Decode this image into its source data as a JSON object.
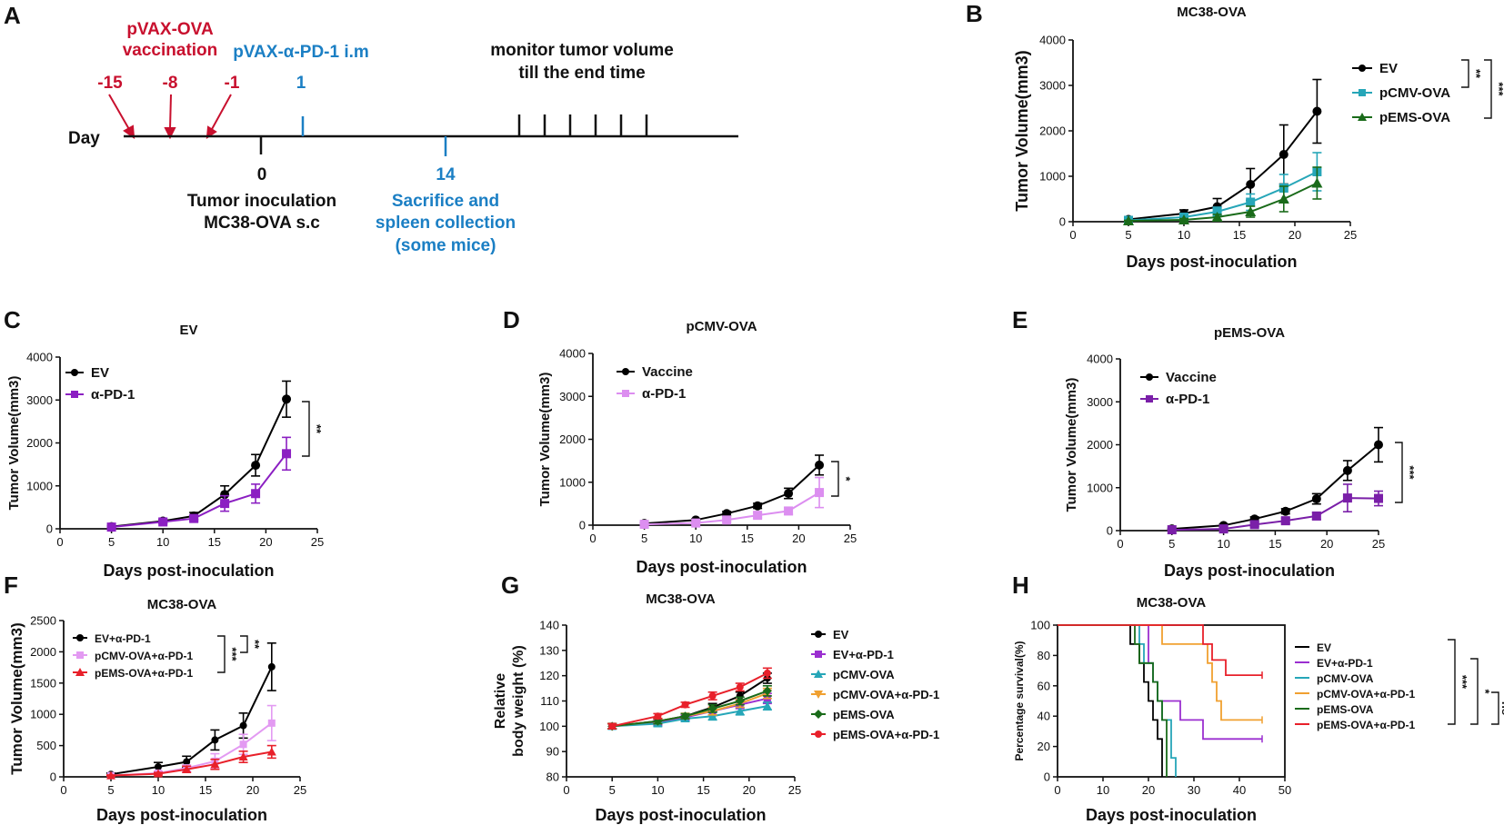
{
  "timeline": {
    "letter": "A",
    "day_label": "Day",
    "vaccination_title_1": "pVAX-OVA",
    "vaccination_title_2": "vaccination",
    "vaccination_days": [
      "-15",
      "-8",
      "-1"
    ],
    "antibody_label": "pVAX-α-PD-1 i.m",
    "antibody_day": "1",
    "inoculation_day": "0",
    "inoculation_label_1": "Tumor inoculation",
    "inoculation_label_2": "MC38-OVA s.c",
    "sacrifice_day": "14",
    "sacrifice_label_1": "Sacrifice and",
    "sacrifice_label_2": "spleen collection",
    "sacrifice_label_3": "(some mice)",
    "monitor_label_1": "monitor tumor volume",
    "monitor_label_2": "till the end time"
  },
  "chart_data": [
    {
      "panel": "B",
      "type": "line",
      "title": "MC38-OVA",
      "xlabel": "Days post-inoculation",
      "ylabel": "Tumor Volume(mm3)",
      "xlim": [
        0,
        25
      ],
      "ylim": [
        0,
        4000
      ],
      "xticks": [
        0,
        5,
        10,
        15,
        20,
        25
      ],
      "yticks": [
        0,
        1000,
        2000,
        3000,
        4000
      ],
      "legend_position": "top-right",
      "series": [
        {
          "name": "EV",
          "color": "#000000",
          "marker": "circle",
          "x": [
            5,
            10,
            13,
            16,
            19,
            22
          ],
          "values": [
            50,
            180,
            330,
            820,
            1480,
            2430
          ],
          "errors": [
            20,
            80,
            180,
            350,
            650,
            700
          ]
        },
        {
          "name": "pCMV-OVA",
          "color": "#26a6b8",
          "marker": "square",
          "x": [
            5,
            10,
            13,
            16,
            19,
            22
          ],
          "values": [
            30,
            100,
            220,
            430,
            740,
            1100
          ],
          "errors": [
            15,
            50,
            100,
            180,
            300,
            420
          ]
        },
        {
          "name": "pEMS-OVA",
          "color": "#1a6b1a",
          "marker": "triangle",
          "x": [
            5,
            10,
            13,
            16,
            19,
            22
          ],
          "values": [
            20,
            40,
            100,
            220,
            500,
            850
          ],
          "errors": [
            10,
            30,
            60,
            120,
            280,
            350
          ]
        }
      ],
      "significance": [
        "**",
        "***"
      ]
    },
    {
      "panel": "C",
      "type": "line",
      "title": "EV",
      "xlabel": "Days post-inoculation",
      "ylabel": "Tumor Volume(mm3)",
      "xlim": [
        0,
        25
      ],
      "ylim": [
        0,
        4000
      ],
      "xticks": [
        0,
        5,
        10,
        15,
        20,
        25
      ],
      "yticks": [
        0,
        1000,
        2000,
        3000,
        4000
      ],
      "legend_position": "top-left",
      "series": [
        {
          "name": "EV",
          "color": "#000000",
          "marker": "circle",
          "x": [
            5,
            10,
            13,
            16,
            19,
            22
          ],
          "values": [
            50,
            180,
            300,
            800,
            1480,
            3020
          ],
          "errors": [
            20,
            40,
            80,
            200,
            250,
            420
          ]
        },
        {
          "name": "α-PD-1",
          "color": "#8b1fc2",
          "marker": "square",
          "x": [
            5,
            10,
            13,
            16,
            19,
            22
          ],
          "values": [
            40,
            160,
            240,
            590,
            820,
            1750
          ],
          "errors": [
            20,
            40,
            60,
            180,
            220,
            380
          ]
        }
      ],
      "significance": [
        "**"
      ]
    },
    {
      "panel": "D",
      "type": "line",
      "title": "pCMV-OVA",
      "xlabel": "Days post-inoculation",
      "ylabel": "Tumor Volume(mm3)",
      "xlim": [
        0,
        25
      ],
      "ylim": [
        0,
        4000
      ],
      "xticks": [
        0,
        5,
        10,
        15,
        20,
        25
      ],
      "yticks": [
        0,
        1000,
        2000,
        3000,
        4000
      ],
      "legend_position": "top-left",
      "series": [
        {
          "name": "Vaccine",
          "color": "#000000",
          "marker": "circle",
          "x": [
            5,
            10,
            13,
            16,
            19,
            22
          ],
          "values": [
            40,
            120,
            270,
            450,
            740,
            1400
          ],
          "errors": [
            15,
            30,
            50,
            60,
            120,
            230
          ]
        },
        {
          "name": "α-PD-1",
          "color": "#dc8ef0",
          "marker": "square",
          "x": [
            5,
            10,
            13,
            16,
            19,
            22
          ],
          "values": [
            20,
            50,
            120,
            230,
            330,
            760
          ],
          "errors": [
            10,
            20,
            40,
            60,
            80,
            350
          ]
        }
      ],
      "significance": [
        "*"
      ]
    },
    {
      "panel": "E",
      "type": "line",
      "title": "pEMS-OVA",
      "xlabel": "Days post-inoculation",
      "ylabel": "Tumor Volume(mm3)",
      "xlim": [
        0,
        25
      ],
      "ylim": [
        0,
        4000
      ],
      "xticks": [
        0,
        5,
        10,
        15,
        20,
        25
      ],
      "yticks": [
        0,
        1000,
        2000,
        3000,
        4000
      ],
      "legend_position": "top-left",
      "series": [
        {
          "name": "Vaccine",
          "color": "#000000",
          "marker": "circle",
          "x": [
            5,
            10,
            13,
            16,
            19,
            22,
            25
          ],
          "values": [
            40,
            120,
            270,
            450,
            740,
            1400,
            2000
          ],
          "errors": [
            15,
            30,
            50,
            60,
            120,
            230,
            400
          ]
        },
        {
          "name": "α-PD-1",
          "color": "#7a1fa8",
          "marker": "square",
          "x": [
            5,
            10,
            13,
            16,
            19,
            22,
            25
          ],
          "values": [
            20,
            40,
            140,
            230,
            340,
            760,
            750
          ],
          "errors": [
            10,
            20,
            40,
            60,
            80,
            320,
            170
          ]
        }
      ],
      "significance": [
        "***"
      ]
    },
    {
      "panel": "F",
      "type": "line",
      "title": "MC38-OVA",
      "xlabel": "Days post-inoculation",
      "ylabel": "Tumor Volume(mm3)",
      "xlim": [
        0,
        25
      ],
      "ylim": [
        0,
        2500
      ],
      "xticks": [
        0,
        5,
        10,
        15,
        20,
        25
      ],
      "yticks": [
        0,
        500,
        1000,
        1500,
        2000,
        2500
      ],
      "legend_position": "top-left",
      "series": [
        {
          "name": "EV+α-PD-1",
          "color": "#000000",
          "marker": "circle",
          "x": [
            5,
            10,
            13,
            16,
            19,
            22
          ],
          "values": [
            40,
            160,
            240,
            590,
            820,
            1760
          ],
          "errors": [
            20,
            70,
            90,
            160,
            200,
            380
          ]
        },
        {
          "name": "pCMV-OVA+α-PD-1",
          "color": "#e39af2",
          "marker": "square",
          "x": [
            5,
            10,
            13,
            16,
            19,
            22
          ],
          "values": [
            20,
            60,
            140,
            250,
            520,
            860
          ],
          "errors": [
            10,
            30,
            50,
            120,
            160,
            280
          ]
        },
        {
          "name": "pEMS-OVA+α-PD-1",
          "color": "#e8202a",
          "marker": "triangle",
          "x": [
            5,
            10,
            13,
            16,
            19,
            22
          ],
          "values": [
            20,
            50,
            120,
            200,
            320,
            400
          ],
          "errors": [
            10,
            20,
            50,
            80,
            90,
            100
          ]
        }
      ],
      "significance": [
        "***",
        "**"
      ]
    },
    {
      "panel": "G",
      "type": "line",
      "title": "MC38-OVA",
      "xlabel": "Days post-inoculation",
      "ylabel_1": "Relative",
      "ylabel_2": "body weight (%)",
      "xlim": [
        0,
        25
      ],
      "ylim": [
        80,
        140
      ],
      "xticks": [
        0,
        5,
        10,
        15,
        20,
        25
      ],
      "yticks": [
        80,
        90,
        100,
        110,
        120,
        130,
        140
      ],
      "legend_position": "right",
      "series": [
        {
          "name": "EV",
          "color": "#000000",
          "marker": "circle",
          "x": [
            5,
            10,
            13,
            16,
            19,
            22
          ],
          "values": [
            100,
            102,
            104,
            107.5,
            112,
            119
          ],
          "errors": [
            1,
            1,
            1,
            1.5,
            1.5,
            2
          ]
        },
        {
          "name": "EV+α-PD-1",
          "color": "#9b2fd0",
          "marker": "square",
          "x": [
            5,
            10,
            13,
            16,
            19,
            22
          ],
          "values": [
            100,
            101.5,
            103.5,
            106,
            108.5,
            111
          ],
          "errors": [
            1,
            1,
            1,
            1.5,
            1.5,
            2
          ]
        },
        {
          "name": "pCMV-OVA",
          "color": "#26a6b8",
          "marker": "triangle",
          "x": [
            5,
            10,
            13,
            16,
            19,
            22
          ],
          "values": [
            100,
            101,
            103,
            104,
            106,
            108
          ],
          "errors": [
            1,
            1,
            1,
            1.5,
            1.5,
            1.5
          ]
        },
        {
          "name": "pCMV-OVA+α-PD-1",
          "color": "#f0a030",
          "marker": "triangle-down",
          "x": [
            5,
            10,
            13,
            16,
            19,
            22
          ],
          "values": [
            100,
            102,
            104,
            106,
            109,
            113
          ],
          "errors": [
            1,
            1,
            1,
            1.5,
            1.5,
            2
          ]
        },
        {
          "name": "pEMS-OVA",
          "color": "#1a6b1a",
          "marker": "diamond",
          "x": [
            5,
            10,
            13,
            16,
            19,
            22
          ],
          "values": [
            100,
            102,
            104,
            107,
            110,
            114
          ],
          "errors": [
            1,
            1,
            1,
            1.5,
            1.5,
            2
          ]
        },
        {
          "name": "pEMS-OVA+α-PD-1",
          "color": "#e8202a",
          "marker": "circle",
          "x": [
            5,
            10,
            13,
            16,
            19,
            22
          ],
          "values": [
            100,
            104,
            108.5,
            112,
            115.5,
            121
          ],
          "errors": [
            1,
            1,
            1,
            1.5,
            1.5,
            2
          ]
        }
      ]
    },
    {
      "panel": "H",
      "type": "line",
      "subtype": "survival-step",
      "title": "MC38-OVA",
      "xlabel": "Days post-inoculation",
      "ylabel": "Percentage survival(%)",
      "xlim": [
        0,
        50
      ],
      "ylim": [
        0,
        100
      ],
      "xticks": [
        0,
        10,
        20,
        30,
        40,
        50
      ],
      "yticks": [
        0,
        20,
        40,
        60,
        80,
        100
      ],
      "legend_position": "right",
      "series": [
        {
          "name": "EV",
          "color": "#000000",
          "steps": [
            [
              0,
              100
            ],
            [
              16,
              100
            ],
            [
              16,
              87.5
            ],
            [
              18,
              87.5
            ],
            [
              18,
              75
            ],
            [
              19,
              75
            ],
            [
              19,
              62.5
            ],
            [
              20,
              62.5
            ],
            [
              20,
              50
            ],
            [
              21,
              50
            ],
            [
              21,
              37.5
            ],
            [
              22,
              37.5
            ],
            [
              22,
              25
            ],
            [
              23,
              25
            ],
            [
              23,
              0
            ]
          ]
        },
        {
          "name": "EV+α-PD-1",
          "color": "#9b2fd0",
          "steps": [
            [
              0,
              100
            ],
            [
              20,
              100
            ],
            [
              20,
              75
            ],
            [
              21,
              75
            ],
            [
              21,
              62.5
            ],
            [
              22,
              62.5
            ],
            [
              22,
              50
            ],
            [
              27,
              50
            ],
            [
              27,
              37.5
            ],
            [
              32,
              37.5
            ],
            [
              32,
              25
            ],
            [
              45,
              25
            ]
          ]
        },
        {
          "name": "pCMV-OVA",
          "color": "#26a6b8",
          "steps": [
            [
              0,
              100
            ],
            [
              18,
              100
            ],
            [
              18,
              87.5
            ],
            [
              19,
              87.5
            ],
            [
              19,
              75
            ],
            [
              21,
              75
            ],
            [
              21,
              62.5
            ],
            [
              22,
              62.5
            ],
            [
              22,
              50
            ],
            [
              23,
              50
            ],
            [
              23,
              37.5
            ],
            [
              25,
              37.5
            ],
            [
              25,
              12.5
            ],
            [
              26,
              12.5
            ],
            [
              26,
              0
            ]
          ]
        },
        {
          "name": "pCMV-OVA+α-PD-1",
          "color": "#f0a030",
          "steps": [
            [
              0,
              100
            ],
            [
              23,
              100
            ],
            [
              23,
              87.5
            ],
            [
              33,
              87.5
            ],
            [
              33,
              75
            ],
            [
              34,
              75
            ],
            [
              34,
              62.5
            ],
            [
              35,
              62.5
            ],
            [
              35,
              50
            ],
            [
              36,
              50
            ],
            [
              36,
              37.5
            ],
            [
              45,
              37.5
            ]
          ]
        },
        {
          "name": "pEMS-OVA",
          "color": "#1a6b1a",
          "steps": [
            [
              0,
              100
            ],
            [
              17,
              100
            ],
            [
              17,
              87.5
            ],
            [
              18,
              87.5
            ],
            [
              18,
              75
            ],
            [
              21,
              75
            ],
            [
              21,
              62.5
            ],
            [
              22,
              62.5
            ],
            [
              22,
              50
            ],
            [
              23,
              50
            ],
            [
              23,
              37.5
            ],
            [
              24,
              37.5
            ],
            [
              24,
              0
            ]
          ]
        },
        {
          "name": "pEMS-OVA+α-PD-1",
          "color": "#e8202a",
          "steps": [
            [
              0,
              100
            ],
            [
              32,
              100
            ],
            [
              32,
              87.5
            ],
            [
              34,
              87.5
            ],
            [
              34,
              77
            ],
            [
              37,
              77
            ],
            [
              37,
              67
            ],
            [
              45,
              67
            ]
          ]
        }
      ],
      "significance": [
        "***",
        "*",
        "ns"
      ]
    }
  ]
}
